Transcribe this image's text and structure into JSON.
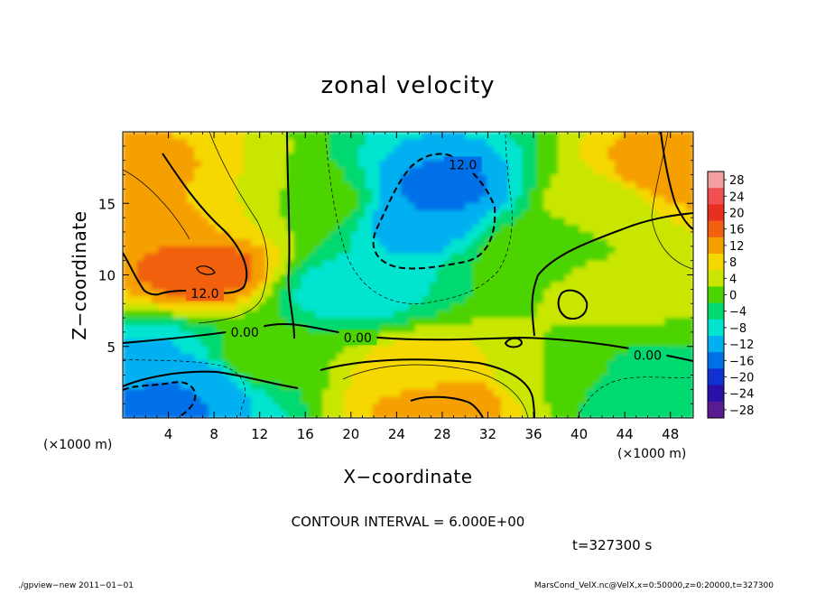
{
  "chart_data": {
    "type": "heatmap",
    "title": "zonal velocity",
    "xlabel": "X−coordinate",
    "ylabel": "Z−coordinate",
    "x_unit": "(×1000 m)",
    "y_unit": "(×1000 m)",
    "xlim": [
      0,
      50
    ],
    "ylim": [
      0,
      20
    ],
    "x_ticks": [
      4,
      8,
      12,
      16,
      20,
      24,
      28,
      32,
      36,
      40,
      44,
      48
    ],
    "y_ticks": [
      5,
      10,
      15
    ],
    "colorbar": {
      "levels": [
        28,
        24,
        20,
        16,
        12,
        8,
        4,
        0,
        -4,
        -8,
        -12,
        -16,
        -20,
        -24,
        -28
      ],
      "labels": [
        "28",
        "24",
        "20",
        "16",
        "12",
        "8",
        "4",
        "0",
        "−4",
        "−8",
        "−12",
        "−16",
        "−20",
        "−24",
        "−28"
      ],
      "colors": [
        "#f4a0a0",
        "#f05050",
        "#e83020",
        "#f06010",
        "#f5a000",
        "#f5d800",
        "#c8e600",
        "#4cd400",
        "#00d870",
        "#00e4d0",
        "#00b0f0",
        "#0070e8",
        "#1030d0",
        "#2a10a8",
        "#5a1a90"
      ]
    },
    "contour_interval": "CONTOUR INTERVAL = 6.000E+00",
    "contour_labels": [
      {
        "text": "12.0",
        "x": 29.8,
        "y": 17.7
      },
      {
        "text": "12.0",
        "x": 7.2,
        "y": 8.7
      },
      {
        "text": "0.00",
        "x": 10.7,
        "y": 6.0
      },
      {
        "text": "0.00",
        "x": 20.6,
        "y": 5.6
      },
      {
        "text": "0.00",
        "x": 46.0,
        "y": 4.4
      }
    ],
    "time_label": "t=327300 s",
    "features": [
      {
        "x": 7,
        "z": 10.5,
        "value": 18
      },
      {
        "x": 4,
        "z": 14,
        "value": 14
      },
      {
        "x": 2,
        "z": 17,
        "value": 13
      },
      {
        "x": 48,
        "z": 17,
        "value": 15
      },
      {
        "x": 28,
        "z": 1.2,
        "value": 15
      },
      {
        "x": 26,
        "z": 3,
        "value": 10
      },
      {
        "x": 26,
        "z": 14,
        "value": -12
      },
      {
        "x": 28,
        "z": 16,
        "value": -13
      },
      {
        "x": 4,
        "z": 1.5,
        "value": -14
      },
      {
        "x": 7,
        "z": 2.5,
        "value": -10
      },
      {
        "x": 2,
        "z": 3.5,
        "value": -9
      },
      {
        "x": 20,
        "z": 9,
        "value": -6
      },
      {
        "x": 17,
        "z": 15,
        "value": 2
      },
      {
        "x": 36,
        "z": 12,
        "value": 2
      },
      {
        "x": 43,
        "z": 9,
        "value": 5
      },
      {
        "x": 12,
        "z": 4,
        "value": 3
      },
      {
        "x": 38,
        "z": 3,
        "value": 4
      },
      {
        "x": 45,
        "z": 2,
        "value": -4
      },
      {
        "x": 10,
        "z": 15,
        "value": 8
      },
      {
        "x": 42,
        "z": 15,
        "value": 6
      }
    ]
  },
  "footer": {
    "left": "./gpview−new   2011−01−01",
    "right": "MarsCond_VelX.nc@VelX,x=0:50000,z=0:20000,t=327300"
  }
}
